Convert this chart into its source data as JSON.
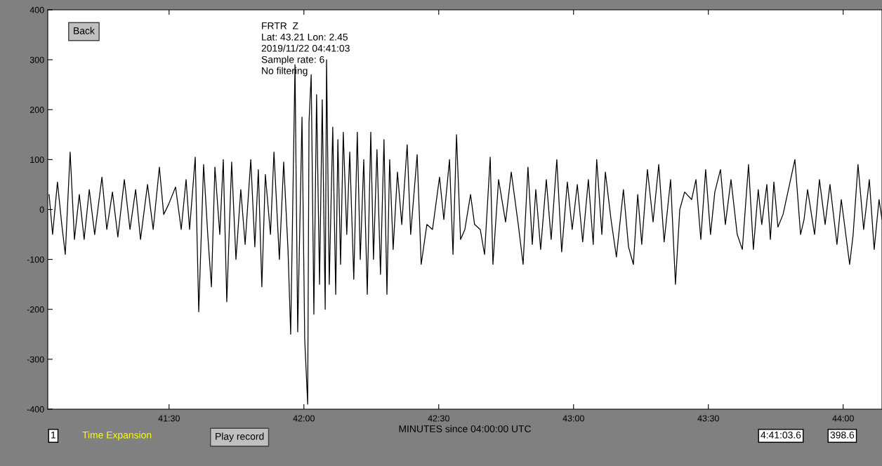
{
  "chart_data": {
    "type": "line",
    "xlabel": "MINUTES since 04:00:00 UTC",
    "annotations": [
      "FRTR  Z",
      "Lat: 43.21 Lon: 2.45",
      "2019/11/22 04:41:03",
      "Sample rate: 6",
      "No filtering",
      "Back",
      "Play record",
      "1",
      "Time Expansion",
      "4:41:03.6",
      "398.6"
    ],
    "xlim": [
      41.05,
      44.144
    ],
    "ylim": [
      -400,
      400
    ],
    "xticks": [
      {
        "value": 41.5,
        "label": "41:30"
      },
      {
        "value": 42,
        "label": "42:00"
      },
      {
        "value": 42.5,
        "label": "42:30"
      },
      {
        "value": 43,
        "label": "43:00"
      },
      {
        "value": 43.5,
        "label": "43:30"
      },
      {
        "value": 44,
        "label": "44:00"
      }
    ],
    "yticks": [
      -400,
      -300,
      -200,
      -100,
      0,
      100,
      200,
      300,
      400
    ],
    "grid": false,
    "legend": false,
    "marker": "none",
    "line_style": "solid",
    "series": [
      {
        "color": "#000000",
        "x": [
          41.055,
          41.068,
          41.086,
          41.102,
          41.115,
          41.133,
          41.149,
          41.167,
          41.185,
          41.204,
          41.224,
          41.251,
          41.269,
          41.29,
          41.31,
          41.334,
          41.355,
          41.376,
          41.394,
          41.42,
          41.441,
          41.464,
          41.48,
          41.498,
          41.524,
          41.545,
          41.563,
          41.576,
          41.597,
          41.61,
          41.628,
          41.644,
          41.657,
          41.67,
          41.688,
          41.701,
          41.714,
          41.732,
          41.748,
          41.766,
          41.782,
          41.803,
          41.818,
          41.831,
          41.844,
          41.857,
          41.876,
          41.889,
          41.909,
          41.925,
          41.941,
          41.951,
          41.967,
          41.977,
          41.993,
          42.003,
          42.014,
          42.019,
          42.027,
          42.037,
          42.047,
          42.058,
          42.068,
          42.079,
          42.084,
          42.094,
          42.107,
          42.118,
          42.126,
          42.136,
          42.146,
          42.159,
          42.17,
          42.185,
          42.198,
          42.209,
          42.222,
          42.235,
          42.248,
          42.258,
          42.271,
          42.284,
          42.297,
          42.308,
          42.318,
          42.331,
          42.347,
          42.363,
          42.383,
          42.396,
          42.42,
          42.435,
          42.456,
          42.477,
          42.503,
          42.519,
          42.54,
          42.553,
          42.566,
          42.581,
          42.597,
          42.618,
          42.633,
          42.654,
          42.67,
          42.691,
          42.701,
          42.722,
          42.748,
          42.769,
          42.795,
          42.813,
          42.831,
          42.847,
          42.86,
          42.878,
          42.899,
          42.917,
          42.938,
          42.956,
          42.977,
          42.995,
          43.014,
          43.034,
          43.055,
          43.073,
          43.086,
          43.105,
          43.118,
          43.139,
          43.159,
          43.185,
          43.204,
          43.222,
          43.238,
          43.253,
          43.274,
          43.295,
          43.316,
          43.336,
          43.36,
          43.378,
          43.394,
          43.412,
          43.438,
          43.454,
          43.472,
          43.49,
          43.508,
          43.524,
          43.545,
          43.563,
          43.584,
          43.607,
          43.626,
          43.649,
          43.667,
          43.685,
          43.698,
          43.717,
          43.73,
          43.743,
          43.758,
          43.777,
          43.821,
          43.842,
          43.855,
          43.868,
          43.894,
          43.912,
          43.933,
          43.951,
          43.977,
          43.993,
          44.024,
          44.037,
          44.055,
          44.076,
          44.097,
          44.115,
          44.133,
          44.144
        ],
        "values": [
          30,
          -50,
          55,
          -30,
          -90,
          115,
          -60,
          30,
          -60,
          40,
          -50,
          65,
          -40,
          35,
          -55,
          60,
          -40,
          40,
          -60,
          50,
          -40,
          85,
          -10,
          10,
          45,
          -40,
          60,
          -40,
          105,
          -205,
          90,
          -55,
          -155,
          85,
          -50,
          100,
          -185,
          95,
          -100,
          40,
          -70,
          100,
          -75,
          80,
          -155,
          70,
          -50,
          115,
          -100,
          95,
          -80,
          -250,
          290,
          -245,
          185,
          -260,
          -390,
          175,
          270,
          -210,
          230,
          -150,
          220,
          -200,
          300,
          -150,
          165,
          -170,
          140,
          -110,
          155,
          -50,
          115,
          -140,
          155,
          -100,
          100,
          -170,
          155,
          -100,
          120,
          -130,
          140,
          -170,
          100,
          -80,
          75,
          -30,
          130,
          -50,
          110,
          -110,
          -30,
          -40,
          65,
          -20,
          100,
          -90,
          150,
          -60,
          -40,
          30,
          -30,
          -40,
          -90,
          105,
          -110,
          60,
          -25,
          75,
          -30,
          -110,
          85,
          -70,
          40,
          -80,
          60,
          -60,
          100,
          -85,
          55,
          -40,
          50,
          -65,
          60,
          -70,
          100,
          -50,
          75,
          -20,
          -95,
          40,
          -75,
          -110,
          30,
          -70,
          80,
          -25,
          90,
          -65,
          60,
          -150,
          0,
          35,
          20,
          60,
          -60,
          80,
          -50,
          35,
          80,
          -30,
          60,
          -50,
          -80,
          90,
          -80,
          40,
          -30,
          50,
          -60,
          55,
          -35,
          -10,
          100,
          -50,
          -20,
          40,
          -50,
          60,
          -30,
          50,
          -70,
          20,
          -110,
          -50,
          90,
          -40,
          60,
          -80,
          20,
          -20
        ]
      }
    ]
  }
}
